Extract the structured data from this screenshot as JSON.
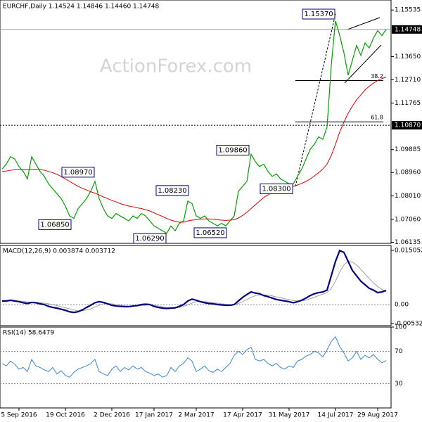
{
  "chart_data": [
    {
      "type": "line",
      "title": "EURCHF,Daily  1.14524 1.14846 1.14460 1.14748",
      "watermark": "ActionForex.com",
      "ylim": [
        1.0612,
        1.1594
      ],
      "yticks": [
        1.15535,
        {
          "value": 1.1365,
          "label": "1.13650"
        },
        {
          "value": 1.1271,
          "label": "1.12710"
        },
        1.11765,
        1.09885,
        {
          "value": 1.0896,
          "label": "1.08960"
        },
        {
          "value": 1.0801,
          "label": "1.08010"
        },
        {
          "value": 1.0706,
          "label": "1.07060"
        },
        1.06135
      ],
      "levels": [
        {
          "value": 1.14748,
          "label": "1.14748",
          "style": "solid"
        },
        {
          "value": 1.1087,
          "label": "1.10870",
          "style": "dotted"
        }
      ],
      "fib_levels": [
        {
          "value": 1.1268,
          "label": "38.2"
        },
        {
          "value": 1.1101,
          "label": "61.8"
        }
      ],
      "annotations": [
        {
          "value": 1.1537,
          "label": "1.15370"
        },
        {
          "value": 1.0986,
          "label": "1.09860"
        },
        {
          "value": 1.0897,
          "label": "1.08970"
        },
        {
          "value": 1.0823,
          "label": "1.08230"
        },
        {
          "value": 1.0685,
          "label": "1.06850"
        },
        {
          "value": 1.0629,
          "label": "1.06290"
        },
        {
          "value": 1.0652,
          "label": "1.06520"
        },
        {
          "value": 1.083,
          "label": "1.08300"
        }
      ],
      "series": [
        {
          "color": "#00a000",
          "width": 1.2,
          "values": [
            1.091,
            1.093,
            1.096,
            1.095,
            1.092,
            1.09,
            1.087,
            1.096,
            1.093,
            1.09,
            1.088,
            1.085,
            1.083,
            1.081,
            1.079,
            1.076,
            1.072,
            1.071,
            1.075,
            1.077,
            1.079,
            1.082,
            1.086,
            1.079,
            1.075,
            1.072,
            1.071,
            1.073,
            1.072,
            1.071,
            1.07,
            1.072,
            1.071,
            1.073,
            1.072,
            1.07,
            1.068,
            1.067,
            1.066,
            1.065,
            1.068,
            1.066,
            1.069,
            1.07,
            1.078,
            1.077,
            1.072,
            1.071,
            1.072,
            1.07,
            1.069,
            1.068,
            1.069,
            1.068,
            1.07,
            1.072,
            1.082,
            1.084,
            1.086,
            1.097,
            1.094,
            1.092,
            1.093,
            1.09,
            1.088,
            1.089,
            1.087,
            1.086,
            1.085,
            1.085,
            1.088,
            1.091,
            1.095,
            1.099,
            1.101,
            1.104,
            1.103,
            1.108,
            1.133,
            1.151,
            1.145,
            1.138,
            1.129,
            1.135,
            1.141,
            1.137,
            1.142,
            1.14,
            1.144,
            1.147,
            1.145,
            1.1475
          ]
        },
        {
          "color": "#e00000",
          "width": 1,
          "values": [
            1.09,
            1.0902,
            1.0905,
            1.0907,
            1.0908,
            1.0908,
            1.0907,
            1.0908,
            1.0909,
            1.0908,
            1.0905,
            1.09,
            1.0895,
            1.0888,
            1.088,
            1.087,
            1.086,
            1.085,
            1.084,
            1.0832,
            1.0825,
            1.0818,
            1.0812,
            1.0805,
            1.0797,
            1.079,
            1.0783,
            1.0777,
            1.077,
            1.0765,
            1.076,
            1.0757,
            1.0753,
            1.075,
            1.0745,
            1.074,
            1.0733,
            1.0725,
            1.0718,
            1.071,
            1.0703,
            1.0698,
            1.0695,
            1.0695,
            1.07,
            1.0703,
            1.0705,
            1.0707,
            1.0708,
            1.0708,
            1.0707,
            1.0705,
            1.0703,
            1.0702,
            1.0703,
            1.0705,
            1.0712,
            1.0722,
            1.0735,
            1.075,
            1.0765,
            1.078,
            1.0795,
            1.0805,
            1.0815,
            1.0822,
            1.0828,
            1.0832,
            1.0836,
            1.084,
            1.0845,
            1.0852,
            1.086,
            1.087,
            1.0882,
            1.0895,
            1.091,
            1.093,
            1.0965,
            1.101,
            1.106,
            1.11,
            1.1135,
            1.1165,
            1.119,
            1.121,
            1.123,
            1.1245,
            1.1258,
            1.1268,
            1.1276,
            1.1282
          ]
        }
      ]
    },
    {
      "type": "line",
      "title": "MACD(12,26,9) 0.003874 0.003712",
      "ylim": [
        -0.00586,
        0.01622
      ],
      "yticks": [
        0.015052,
        {
          "value": 0,
          "label": "0.00"
        },
        -0.005321
      ],
      "dashed_ticks": [
        1
      ],
      "series": [
        {
          "color": "#a0a0a0",
          "width": 1,
          "values": [
            0.0008,
            0.0009,
            0.001,
            0.001,
            0.001,
            0.0009,
            0.0007,
            0.0006,
            0.0006,
            0.0005,
            0.0004,
            0.0002,
            0,
            -0.0003,
            -0.0006,
            -0.0009,
            -0.0012,
            -0.0015,
            -0.0017,
            -0.0017,
            -0.0015,
            -0.0012,
            -0.0007,
            -0.0002,
            0.0002,
            0.0003,
            0.0002,
            0,
            -0.0002,
            -0.0003,
            -0.0004,
            -0.0004,
            -0.0004,
            -0.0003,
            -0.0002,
            -0.0001,
            -0.0002,
            -0.0004,
            -0.0006,
            -0.0008,
            -0.0009,
            -0.0009,
            -0.0008,
            -0.0005,
            -0.0001,
            0.0004,
            0.0008,
            0.0009,
            0.0008,
            0.0007,
            0.0005,
            0.0004,
            0.0002,
            0.0001,
            0,
            0,
            0.0003,
            0.0008,
            0.0014,
            0.002,
            0.0025,
            0.0027,
            0.0027,
            0.0026,
            0.0024,
            0.0021,
            0.0019,
            0.0016,
            0.0014,
            0.0011,
            0.001,
            0.001,
            0.0012,
            0.0016,
            0.002,
            0.0025,
            0.0029,
            0.0033,
            0.0045,
            0.0065,
            0.009,
            0.011,
            0.012,
            0.0118,
            0.011,
            0.0098,
            0.0085,
            0.0072,
            0.006,
            0.005,
            0.0042,
            0.0037
          ]
        },
        {
          "color": "#000080",
          "width": 2.2,
          "values": [
            0.001,
            0.001,
            0.0012,
            0.001,
            0.0008,
            0.0005,
            0.0003,
            0.0006,
            0.0005,
            0.0002,
            0,
            -0.0005,
            -0.0008,
            -0.001,
            -0.0013,
            -0.0016,
            -0.002,
            -0.0022,
            -0.002,
            -0.0015,
            -0.0008,
            -0.0002,
            0.0005,
            0.0008,
            0.0006,
            0.0002,
            -0.0002,
            -0.0004,
            -0.0005,
            -0.0006,
            -0.0006,
            -0.0004,
            -0.0003,
            0,
            0.0001,
            0,
            -0.0005,
            -0.0008,
            -0.001,
            -0.0011,
            -0.001,
            -0.0009,
            -0.0005,
            0,
            0.001,
            0.0015,
            0.0012,
            0.0008,
            0.0005,
            0.0003,
            0.0002,
            0,
            -0.0001,
            -0.0002,
            -0.0002,
            0,
            0.001,
            0.002,
            0.0028,
            0.0035,
            0.0032,
            0.003,
            0.0025,
            0.0022,
            0.0018,
            0.0014,
            0.0012,
            0.001,
            0.0008,
            0.0005,
            0.0008,
            0.0012,
            0.0018,
            0.0025,
            0.003,
            0.0033,
            0.0035,
            0.004,
            0.008,
            0.012,
            0.015,
            0.0145,
            0.012,
            0.0095,
            0.008,
            0.0065,
            0.0055,
            0.0045,
            0.004,
            0.0033,
            0.0035,
            0.0039
          ]
        }
      ]
    },
    {
      "type": "line",
      "title": "RSI(14) 58.6479",
      "ylim": [
        0,
        100
      ],
      "yticks": [
        100,
        70,
        30
      ],
      "dashed_ticks": [
        1,
        2
      ],
      "categories": [
        null,
        null,
        null,
        null,
        "5 Sep 2016",
        null,
        null,
        null,
        null,
        null,
        null,
        null,
        null,
        null,
        null,
        "19 Oct 2016",
        null,
        null,
        null,
        null,
        null,
        null,
        null,
        null,
        null,
        null,
        "2 Dec 2016",
        null,
        null,
        null,
        null,
        null,
        null,
        null,
        null,
        null,
        "17 Jan 2017",
        null,
        null,
        null,
        null,
        null,
        null,
        null,
        null,
        null,
        "2 Mar 2017",
        null,
        null,
        null,
        null,
        null,
        null,
        null,
        null,
        null,
        null,
        "17 Apr 2017",
        null,
        null,
        null,
        null,
        null,
        null,
        null,
        null,
        null,
        null,
        "31 May 2017",
        null,
        null,
        null,
        null,
        null,
        null,
        null,
        null,
        null,
        null,
        "14 Jul 2017",
        null,
        null,
        null,
        null,
        null,
        null,
        null,
        null,
        null,
        "29 Aug 2017",
        null,
        null
      ],
      "series": [
        {
          "color": "#3a86d0",
          "width": 1,
          "values": [
            55,
            52,
            58,
            54,
            48,
            50,
            45,
            60,
            52,
            50,
            47,
            45,
            50,
            42,
            46,
            40,
            38,
            44,
            48,
            50,
            52,
            55,
            60,
            45,
            42,
            40,
            48,
            52,
            45,
            50,
            47,
            52,
            48,
            50,
            45,
            43,
            40,
            42,
            38,
            40,
            50,
            45,
            52,
            55,
            62,
            58,
            45,
            48,
            52,
            46,
            44,
            48,
            45,
            50,
            55,
            65,
            70,
            66,
            72,
            75,
            60,
            58,
            60,
            55,
            52,
            55,
            50,
            48,
            52,
            50,
            58,
            60,
            64,
            66,
            70,
            68,
            63,
            72,
            82,
            88,
            76,
            68,
            58,
            62,
            70,
            60,
            65,
            62,
            66,
            60,
            56,
            58.6479
          ]
        }
      ]
    }
  ]
}
